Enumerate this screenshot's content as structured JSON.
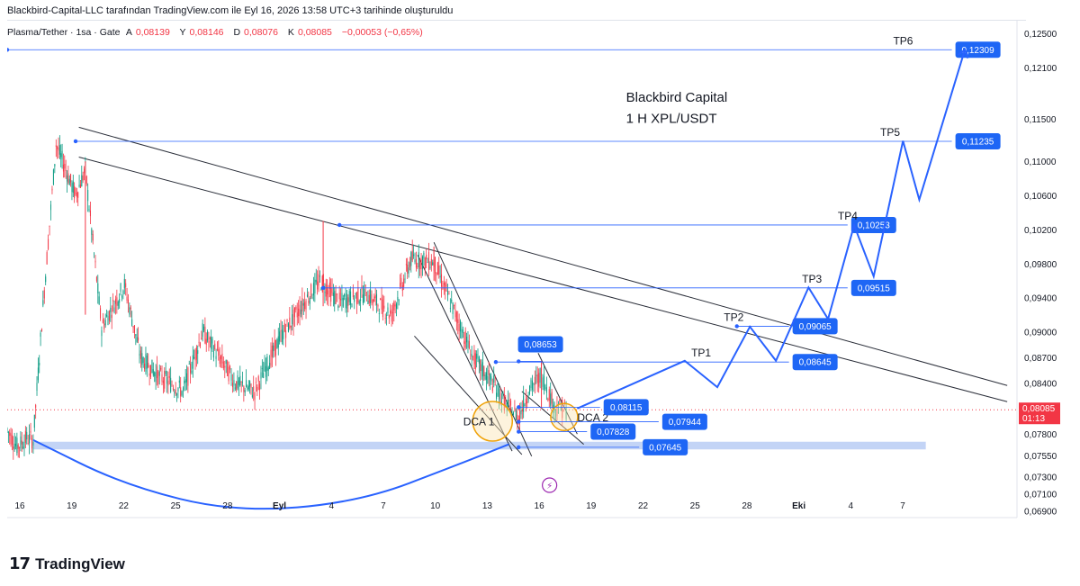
{
  "header": {
    "credit": "Blackbird-Capital-LLC tarafından TradingView.com ile Eyl 16, 2026 13:58 UTC+3 tarihinde oluşturuldu"
  },
  "symbol_bar": {
    "symbol": "Plasma/Tether · 1sa · Gate",
    "open_label": "A",
    "open_value": "0,08139",
    "high_label": "Y",
    "high_value": "0,08146",
    "low_label": "D",
    "low_value": "0,08076",
    "close_label": "K",
    "close_value": "0,08085",
    "change": "−0,00053 (−0,65%)"
  },
  "footer": {
    "logo_mark": "17",
    "logo_text": "TradingView"
  },
  "colors": {
    "up": "#089981",
    "down": "#f23645",
    "accent_blue": "#2962ff",
    "label_blue": "#1e66f5",
    "support_band": "#b8cdf5",
    "current_price": "#f23645"
  },
  "chart_data": {
    "type": "line",
    "title": "Blackbird Capital",
    "subtitle": "1 H XPL/USDT",
    "x_ticks": [
      "16",
      "19",
      "22",
      "25",
      "28",
      "Eyl",
      "4",
      "7",
      "10",
      "13",
      "16",
      "19",
      "22",
      "25",
      "28",
      "Eki",
      "4",
      "7"
    ],
    "y_ticks": [
      "0,12500",
      "0,12100",
      "0,11500",
      "0,11000",
      "0,10600",
      "0,10200",
      "0,09800",
      "0,09400",
      "0,09000",
      "0,08700",
      "0,08400",
      "0,07800",
      "0,07550",
      "0,07300",
      "0,07100",
      "0,06900"
    ],
    "current_price": "0,08085",
    "current_countdown": "01:13",
    "ylim": [
      0.0682,
      0.1265
    ],
    "price_path": [
      [
        0,
        0.0785
      ],
      [
        3,
        0.0765
      ],
      [
        6,
        0.0775
      ],
      [
        8,
        0.0773
      ],
      [
        11,
        0.093
      ],
      [
        15,
        0.112
      ],
      [
        21,
        0.106
      ],
      [
        24,
        0.109
      ],
      [
        29,
        0.0905
      ],
      [
        36,
        0.0955
      ],
      [
        41,
        0.087
      ],
      [
        46,
        0.085
      ],
      [
        54,
        0.083
      ],
      [
        60,
        0.09
      ],
      [
        66,
        0.0865
      ],
      [
        70,
        0.084
      ],
      [
        76,
        0.083
      ],
      [
        84,
        0.0895
      ],
      [
        96,
        0.096
      ],
      [
        102,
        0.0935
      ],
      [
        110,
        0.0945
      ],
      [
        118,
        0.092
      ],
      [
        124,
        0.0985
      ],
      [
        131,
        0.0982
      ],
      [
        143,
        0.087
      ],
      [
        149,
        0.084
      ],
      [
        153,
        0.0815
      ],
      [
        157,
        0.08
      ],
      [
        160,
        0.083
      ],
      [
        164,
        0.085
      ],
      [
        168,
        0.0812
      ],
      [
        172,
        0.0808
      ]
    ],
    "wicks": [
      [
        24,
        0.11,
        0.092
      ],
      [
        97,
        0.103,
        0.093
      ],
      [
        131,
        0.1,
        0.096
      ],
      [
        164,
        0.0866,
        0.081
      ]
    ],
    "projection_path": [
      [
        175,
        0.081
      ],
      [
        208,
        0.0866
      ],
      [
        218,
        0.0835
      ],
      [
        228,
        0.0906
      ],
      [
        236,
        0.0866
      ],
      [
        246,
        0.0952
      ],
      [
        252,
        0.0915
      ],
      [
        260,
        0.1025
      ],
      [
        266,
        0.0965
      ],
      [
        275,
        0.1124
      ],
      [
        280,
        0.1055
      ],
      [
        294,
        0.1231
      ]
    ],
    "arc_path": [
      [
        8,
        0.0773
      ],
      [
        36,
        0.072
      ],
      [
        70,
        0.0688
      ],
      [
        108,
        0.07
      ],
      [
        139,
        0.0745
      ],
      [
        154,
        0.0768
      ]
    ],
    "levels": [
      {
        "label": "0,12309",
        "value": 0.12309,
        "x1": 0,
        "x2": 290,
        "tag": "TP6",
        "tag_x": 272
      },
      {
        "label": "0,11235",
        "value": 0.11235,
        "x1": 21,
        "x2": 290,
        "tag": "TP5",
        "tag_x": 268
      },
      {
        "label": "0,10253",
        "value": 0.10253,
        "x1": 102,
        "x2": 258,
        "tag": "TP4",
        "tag_x": 255
      },
      {
        "label": "0,09515",
        "value": 0.09515,
        "x1": 97,
        "x2": 258,
        "tag": "TP3",
        "tag_x": 244
      },
      {
        "label": "0,09065",
        "value": 0.09065,
        "x1": 224,
        "x2": 240,
        "tag": "TP2",
        "tag_x": 220
      },
      {
        "label": "0,08645",
        "value": 0.08645,
        "x1": 150,
        "x2": 240,
        "tag": "TP1",
        "tag_x": 210
      },
      {
        "label": "0,08653",
        "value": 0.08653,
        "x1": 157,
        "x2": 164,
        "tag": "",
        "tag_x": 0
      },
      {
        "label": "0,08115",
        "value": 0.08115,
        "x1": 157,
        "x2": 182,
        "tag": "",
        "tag_x": 0
      },
      {
        "label": "0,07944",
        "value": 0.07944,
        "x1": 157,
        "x2": 200,
        "tag": "",
        "tag_x": 0
      },
      {
        "label": "0,07828",
        "value": 0.07828,
        "x1": 157,
        "x2": 178,
        "tag": "",
        "tag_x": 0
      },
      {
        "label": "0,07645",
        "value": 0.07645,
        "x1": 157,
        "x2": 194,
        "tag": "",
        "tag_x": 0
      }
    ],
    "support_band": [
      0.0762,
      0.0771
    ],
    "trendlines": [
      [
        [
          22,
          0.114
        ],
        [
          307,
          0.0837
        ]
      ],
      [
        [
          22,
          0.1105
        ],
        [
          307,
          0.0818
        ]
      ],
      [
        [
          131,
          0.1005
        ],
        [
          161,
          0.0754
        ]
      ],
      [
        [
          126,
          0.099
        ],
        [
          155,
          0.076
        ]
      ],
      [
        [
          125,
          0.0895
        ],
        [
          158,
          0.0756
        ]
      ],
      [
        [
          163,
          0.0875
        ],
        [
          175,
          0.078
        ]
      ],
      [
        [
          158,
          0.083
        ],
        [
          177,
          0.0768
        ]
      ]
    ],
    "annotations": [
      {
        "text": "DCA 1",
        "x": 140,
        "y": 0.079
      },
      {
        "text": "DCA 2",
        "x": 175,
        "y": 0.0795
      }
    ],
    "zones": [
      {
        "name": "DCA 1",
        "x": 149,
        "y": 0.0795
      },
      {
        "name": "DCA 2",
        "x": 171,
        "y": 0.08
      }
    ],
    "x_range": [
      0,
      310
    ]
  }
}
